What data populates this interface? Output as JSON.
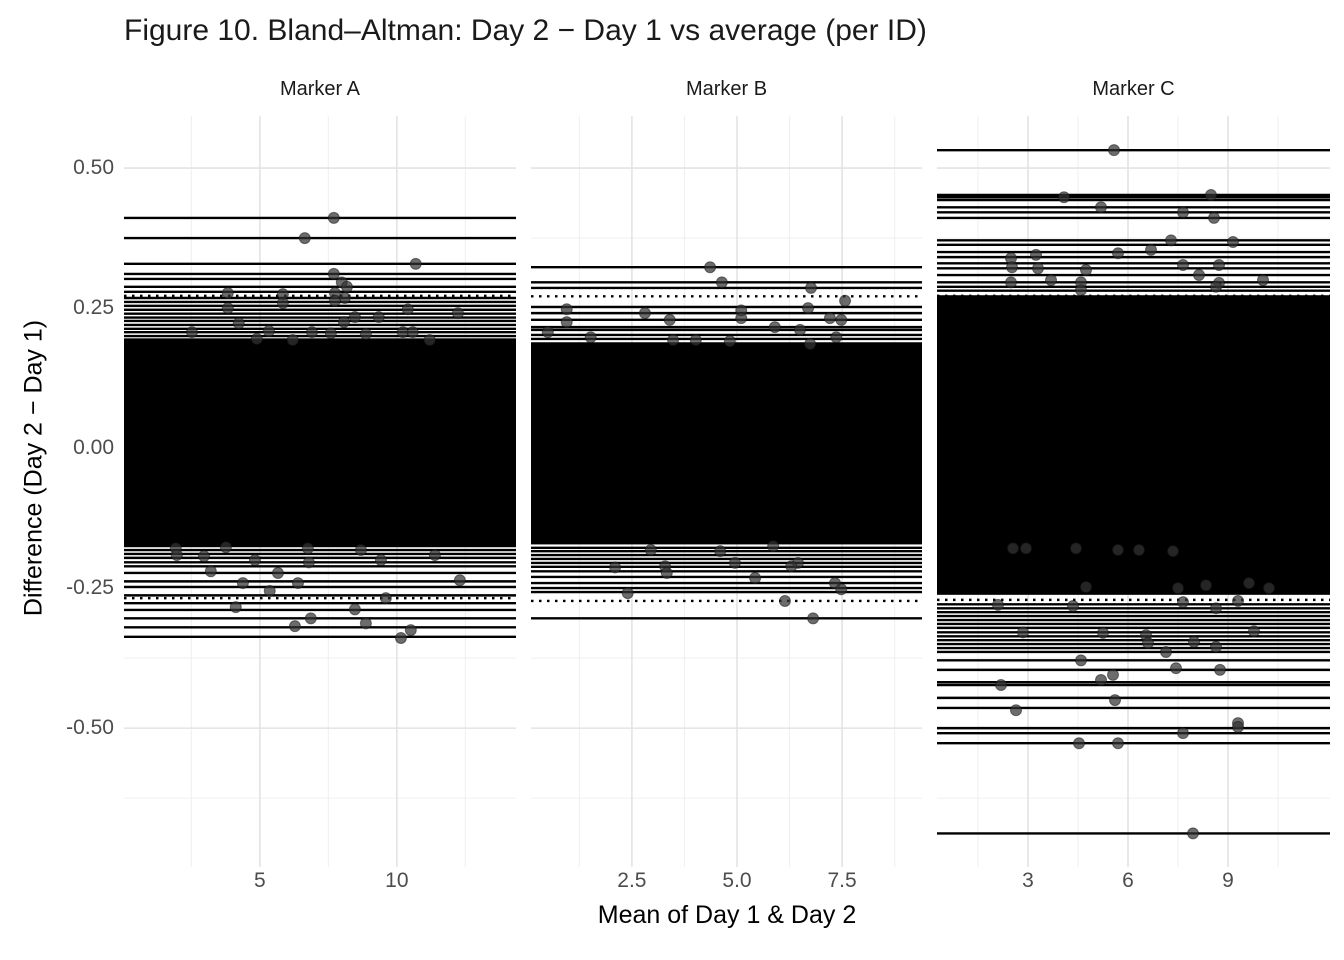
{
  "title": "Figure 10. Bland–Altman: Day 2 − Day 1 vs average (per ID)",
  "colors": {
    "background": "#ffffff",
    "line": "#000000",
    "point_fill": "#333333",
    "point_stroke": "#111111",
    "grid_major": "#e3e3e3",
    "grid_minor": "#f0f0f0",
    "tick_text": "#4d4d4d",
    "title_text": "#1a1a1a"
  },
  "chart_data": {
    "type": "scatter",
    "title": "Figure 10. Bland–Altman: Day 2 − Day 1 vs average (per ID)",
    "xlabel": "Mean of Day 1 & Day 2",
    "ylabel": "Difference (Day 2 − Day 1)",
    "grid": true,
    "legend": "none",
    "description": "Per-ID Bland-Altman: horizontal black line per ID at its mean difference spanning the panel, points at (mean, difference), dotted limit-of-agreement lines near ±0.27. Central lines overlap into a solid black band.",
    "y_axis": {
      "range": [
        -0.748,
        0.593
      ],
      "major_ticks": [
        {
          "value": 0.5,
          "label": "0.50"
        },
        {
          "value": 0.25,
          "label": "0.25"
        },
        {
          "value": 0.0,
          "label": "0.00"
        },
        {
          "value": -0.25,
          "label": "-0.25"
        },
        {
          "value": -0.5,
          "label": "-0.50"
        }
      ],
      "minor_ticks": [
        0.375,
        0.125,
        -0.125,
        -0.375,
        -0.625
      ]
    },
    "facets": [
      {
        "label": "Marker A",
        "x_range": [
          0.04,
          14.35
        ],
        "x_major_ticks": [
          {
            "value": 5,
            "label": "5"
          },
          {
            "value": 10,
            "label": "10"
          }
        ],
        "x_minor_ticks": [
          2.5,
          7.5,
          12.5
        ],
        "solid_band": [
          0.196,
          -0.177
        ],
        "loa_dotted": [
          0.272,
          -0.268
        ],
        "hlines": [
          0.411,
          0.375,
          0.329,
          0.311,
          0.302,
          0.288,
          0.279,
          0.268,
          0.261,
          0.254,
          0.247,
          0.24,
          0.233,
          0.227,
          0.22,
          0.213,
          0.207,
          0.2,
          -0.182,
          -0.189,
          -0.196,
          -0.204,
          -0.211,
          -0.223,
          -0.238,
          -0.248,
          -0.263,
          -0.277,
          -0.289,
          -0.304,
          -0.32,
          -0.337
        ],
        "points": [
          [
            7.7,
            0.411
          ],
          [
            6.64,
            0.375
          ],
          [
            10.69,
            0.329
          ],
          [
            7.7,
            0.311
          ],
          [
            7.99,
            0.296
          ],
          [
            8.18,
            0.288
          ],
          [
            3.83,
            0.277
          ],
          [
            5.84,
            0.275
          ],
          [
            7.74,
            0.277
          ],
          [
            8.1,
            0.268
          ],
          [
            7.74,
            0.263
          ],
          [
            5.84,
            0.259
          ],
          [
            3.83,
            0.25
          ],
          [
            10.4,
            0.248
          ],
          [
            12.23,
            0.241
          ],
          [
            8.47,
            0.234
          ],
          [
            9.34,
            0.234
          ],
          [
            8.07,
            0.225
          ],
          [
            4.23,
            0.223
          ],
          [
            2.52,
            0.207
          ],
          [
            5.33,
            0.209
          ],
          [
            6.9,
            0.207
          ],
          [
            10.22,
            0.207
          ],
          [
            10.58,
            0.207
          ],
          [
            7.59,
            0.205
          ],
          [
            8.87,
            0.204
          ],
          [
            4.89,
            0.195
          ],
          [
            6.2,
            0.193
          ],
          [
            11.2,
            0.193
          ],
          [
            1.93,
            -0.179
          ],
          [
            3.76,
            -0.177
          ],
          [
            6.75,
            -0.179
          ],
          [
            8.69,
            -0.182
          ],
          [
            1.97,
            -0.191
          ],
          [
            2.96,
            -0.193
          ],
          [
            11.39,
            -0.191
          ],
          [
            4.82,
            -0.2
          ],
          [
            6.79,
            -0.204
          ],
          [
            9.42,
            -0.2
          ],
          [
            3.21,
            -0.22
          ],
          [
            5.66,
            -0.223
          ],
          [
            12.3,
            -0.236
          ],
          [
            4.38,
            -0.241
          ],
          [
            6.39,
            -0.241
          ],
          [
            5.36,
            -0.255
          ],
          [
            9.6,
            -0.268
          ],
          [
            4.12,
            -0.284
          ],
          [
            8.47,
            -0.288
          ],
          [
            6.86,
            -0.304
          ],
          [
            8.87,
            -0.313
          ],
          [
            6.28,
            -0.318
          ],
          [
            10.51,
            -0.325
          ],
          [
            10.15,
            -0.339
          ]
        ]
      },
      {
        "label": "Marker B",
        "x_range": [
          0.1,
          9.4
        ],
        "x_major_ticks": [
          {
            "value": 2.5,
            "label": "2.5"
          },
          {
            "value": 5.0,
            "label": "5.0"
          },
          {
            "value": 7.5,
            "label": "7.5"
          }
        ],
        "x_minor_ticks": [
          1.25,
          3.75,
          6.25,
          8.75
        ],
        "solid_band": [
          0.189,
          -0.172
        ],
        "loa_dotted": [
          0.271,
          -0.273
        ],
        "hlines": [
          0.323,
          0.296,
          0.286,
          0.252,
          0.241,
          0.229,
          0.216,
          0.211,
          0.202,
          0.195,
          -0.178,
          -0.184,
          -0.191,
          -0.198,
          -0.205,
          -0.212,
          -0.22,
          -0.23,
          -0.241,
          -0.25,
          -0.257,
          -0.304
        ],
        "points": [
          [
            4.36,
            0.323
          ],
          [
            4.64,
            0.296
          ],
          [
            6.76,
            0.286
          ],
          [
            7.57,
            0.263
          ],
          [
            0.95,
            0.248
          ],
          [
            5.1,
            0.246
          ],
          [
            6.69,
            0.25
          ],
          [
            2.81,
            0.241
          ],
          [
            5.1,
            0.232
          ],
          [
            7.21,
            0.232
          ],
          [
            7.48,
            0.229
          ],
          [
            3.4,
            0.229
          ],
          [
            0.95,
            0.225
          ],
          [
            5.9,
            0.216
          ],
          [
            6.5,
            0.211
          ],
          [
            0.5,
            0.207
          ],
          [
            1.52,
            0.198
          ],
          [
            7.36,
            0.198
          ],
          [
            3.48,
            0.193
          ],
          [
            4.02,
            0.193
          ],
          [
            4.83,
            0.191
          ],
          [
            6.74,
            0.186
          ],
          [
            5.86,
            -0.175
          ],
          [
            2.95,
            -0.182
          ],
          [
            4.6,
            -0.184
          ],
          [
            4.95,
            -0.205
          ],
          [
            6.45,
            -0.205
          ],
          [
            2.1,
            -0.213
          ],
          [
            3.29,
            -0.211
          ],
          [
            6.29,
            -0.211
          ],
          [
            3.33,
            -0.223
          ],
          [
            5.43,
            -0.232
          ],
          [
            7.33,
            -0.241
          ],
          [
            7.48,
            -0.252
          ],
          [
            2.4,
            -0.259
          ],
          [
            6.14,
            -0.273
          ],
          [
            6.81,
            -0.304
          ]
        ]
      },
      {
        "label": "Marker C",
        "x_range": [
          0.27,
          12.06
        ],
        "x_major_ticks": [
          {
            "value": 3,
            "label": "3"
          },
          {
            "value": 6,
            "label": "6"
          },
          {
            "value": 9,
            "label": "9"
          }
        ],
        "x_minor_ticks": [
          1.5,
          4.5,
          7.5,
          10.5
        ],
        "solid_band": [
          0.273,
          -0.262
        ],
        "loa_dotted": [
          0.272,
          -0.271
        ],
        "hlines": [
          0.532,
          0.452,
          0.448,
          0.443,
          0.43,
          0.421,
          0.411,
          0.371,
          0.363,
          0.35,
          0.341,
          0.33,
          0.321,
          0.309,
          0.296,
          0.288,
          0.281,
          -0.279,
          -0.286,
          -0.293,
          -0.3,
          -0.307,
          -0.314,
          -0.321,
          -0.329,
          -0.336,
          -0.343,
          -0.35,
          -0.357,
          -0.364,
          -0.379,
          -0.396,
          -0.418,
          -0.423,
          -0.446,
          -0.464,
          -0.5,
          -0.509,
          -0.527,
          -0.688
        ],
        "points": [
          [
            5.58,
            0.532
          ],
          [
            4.08,
            0.448
          ],
          [
            8.49,
            0.452
          ],
          [
            5.19,
            0.43
          ],
          [
            7.65,
            0.421
          ],
          [
            8.58,
            0.411
          ],
          [
            7.29,
            0.371
          ],
          [
            9.15,
            0.368
          ],
          [
            6.69,
            0.354
          ],
          [
            5.7,
            0.348
          ],
          [
            3.24,
            0.345
          ],
          [
            2.49,
            0.339
          ],
          [
            2.52,
            0.323
          ],
          [
            3.3,
            0.321
          ],
          [
            7.65,
            0.327
          ],
          [
            8.73,
            0.327
          ],
          [
            4.74,
            0.318
          ],
          [
            8.13,
            0.309
          ],
          [
            10.05,
            0.3
          ],
          [
            3.69,
            0.3
          ],
          [
            2.49,
            0.296
          ],
          [
            4.59,
            0.296
          ],
          [
            8.73,
            0.295
          ],
          [
            8.64,
            0.288
          ],
          [
            4.59,
            0.282
          ],
          [
            2.55,
            -0.179
          ],
          [
            2.94,
            -0.179
          ],
          [
            4.44,
            -0.179
          ],
          [
            5.7,
            -0.182
          ],
          [
            6.33,
            -0.182
          ],
          [
            7.35,
            -0.184
          ],
          [
            4.74,
            -0.248
          ],
          [
            7.5,
            -0.25
          ],
          [
            8.34,
            -0.245
          ],
          [
            9.63,
            -0.241
          ],
          [
            10.23,
            -0.25
          ],
          [
            7.65,
            -0.275
          ],
          [
            9.3,
            -0.273
          ],
          [
            2.1,
            -0.28
          ],
          [
            4.35,
            -0.282
          ],
          [
            8.64,
            -0.286
          ],
          [
            2.85,
            -0.329
          ],
          [
            9.78,
            -0.327
          ],
          [
            5.25,
            -0.33
          ],
          [
            6.54,
            -0.334
          ],
          [
            6.6,
            -0.348
          ],
          [
            7.98,
            -0.346
          ],
          [
            8.64,
            -0.355
          ],
          [
            7.14,
            -0.364
          ],
          [
            4.59,
            -0.379
          ],
          [
            7.44,
            -0.393
          ],
          [
            8.76,
            -0.396
          ],
          [
            5.55,
            -0.405
          ],
          [
            5.19,
            -0.414
          ],
          [
            2.19,
            -0.423
          ],
          [
            5.61,
            -0.45
          ],
          [
            2.64,
            -0.468
          ],
          [
            9.3,
            -0.491
          ],
          [
            9.3,
            -0.498
          ],
          [
            7.65,
            -0.509
          ],
          [
            4.53,
            -0.527
          ],
          [
            5.7,
            -0.527
          ],
          [
            7.95,
            -0.688
          ]
        ]
      }
    ]
  }
}
